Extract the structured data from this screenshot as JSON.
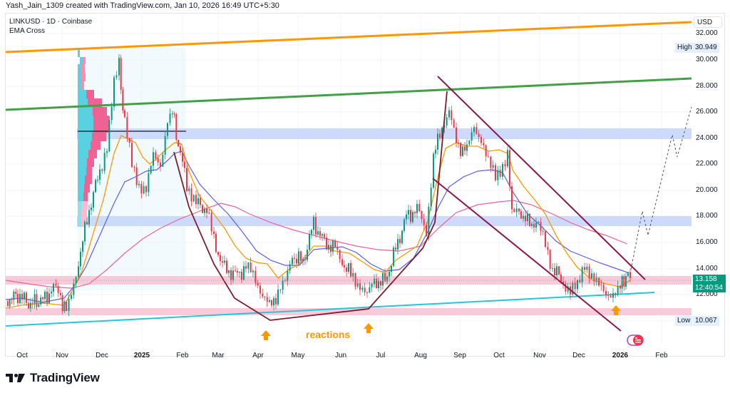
{
  "header": {
    "attribution": "Yash_Jain_1309 created with TradingView.com, Jan 10, 2026 16:49 UTC+5:30"
  },
  "legend": {
    "symbol_line": "LINKUSD · 1D · Coinbase",
    "indicator": "EMA Cross"
  },
  "price_axis": {
    "currency": "USD",
    "ticks": [
      "32.000",
      "30.000",
      "28.000",
      "26.000",
      "24.000",
      "22.000",
      "20.000",
      "18.000",
      "16.000",
      "14.000",
      "12.000"
    ],
    "high_label": "High",
    "high_value": "30.949",
    "low_label": "Low",
    "low_value": "10.067",
    "last_price": "13.158",
    "countdown": "12:40:54"
  },
  "time_axis": {
    "ticks": [
      {
        "label": "Oct",
        "bold": false
      },
      {
        "label": "Nov",
        "bold": false
      },
      {
        "label": "Dec",
        "bold": false
      },
      {
        "label": "2025",
        "bold": true
      },
      {
        "label": "Feb",
        "bold": false
      },
      {
        "label": "Mar",
        "bold": false
      },
      {
        "label": "Apr",
        "bold": false
      },
      {
        "label": "May",
        "bold": false
      },
      {
        "label": "Jun",
        "bold": false
      },
      {
        "label": "Jul",
        "bold": false
      },
      {
        "label": "Aug",
        "bold": false
      },
      {
        "label": "Sep",
        "bold": false
      },
      {
        "label": "Oct",
        "bold": false
      },
      {
        "label": "Nov",
        "bold": false
      },
      {
        "label": "Dec",
        "bold": false
      },
      {
        "label": "2026",
        "bold": true
      },
      {
        "label": "Feb",
        "bold": false
      }
    ]
  },
  "annotations": {
    "reactions_text": "reactions"
  },
  "branding": {
    "logo_text": "TradingView"
  },
  "colors": {
    "up": "#089981",
    "down": "#f23645",
    "ema_fast": "#ff9800",
    "ema_mid": "#5b5ff0",
    "ema_slow": "#f06292",
    "upper_resistance": "#ff9800",
    "mid_resistance": "#4caf50",
    "support_line": "#26c6da",
    "pattern_lines": "#8b1a3a",
    "blue_zone": "#c5d3fb",
    "pink_zone": "#f8c5d6"
  },
  "chart_data": {
    "type": "line",
    "title": "LINKUSD · 1D · Coinbase",
    "subtitle": "EMA Cross",
    "xlabel": "",
    "ylabel": "USD",
    "ylim": [
      9.5,
      33
    ],
    "grid": true,
    "x": [
      "2024-10",
      "2024-11",
      "2024-12",
      "2025-01",
      "2025-02",
      "2025-03",
      "2025-04",
      "2025-05",
      "2025-06",
      "2025-07",
      "2025-08",
      "2025-09",
      "2025-10",
      "2025-11",
      "2025-12",
      "2026-01",
      "2026-02"
    ],
    "series": [
      {
        "name": "LINKUSD close (approx, monthly)",
        "values": [
          11.2,
          11.0,
          22.5,
          24.0,
          19.5,
          14.5,
          11.5,
          15.0,
          13.0,
          15.5,
          24.5,
          22.0,
          18.0,
          13.5,
          12.2,
          13.158,
          null
        ]
      },
      {
        "name": "EMA fast",
        "values": [
          11.5,
          11.3,
          17.0,
          23.0,
          21.0,
          16.0,
          13.0,
          14.5,
          14.0,
          14.5,
          22.0,
          23.0,
          21.0,
          15.0,
          12.8,
          13.0,
          null
        ]
      },
      {
        "name": "EMA mid",
        "values": [
          11.6,
          11.4,
          14.0,
          21.0,
          21.5,
          17.5,
          14.0,
          14.8,
          14.7,
          14.0,
          19.0,
          22.5,
          21.5,
          17.0,
          14.3,
          13.6,
          null
        ]
      },
      {
        "name": "EMA slow",
        "values": [
          12.8,
          12.3,
          12.8,
          15.5,
          17.8,
          17.5,
          16.5,
          16.0,
          15.6,
          15.3,
          17.5,
          18.8,
          19.2,
          17.8,
          16.6,
          16.1,
          null
        ]
      }
    ],
    "annotations": [
      {
        "type": "trendline",
        "label": "upper resistance (orange)",
        "from": [
          "2024-10",
          30.9
        ],
        "to": [
          "2026-02",
          32.8
        ]
      },
      {
        "type": "trendline",
        "label": "mid resistance (green)",
        "from": [
          "2024-10",
          26.4
        ],
        "to": [
          "2026-02",
          28.6
        ]
      },
      {
        "type": "trendline",
        "label": "rising support (cyan)",
        "from": [
          "2024-10",
          9.9
        ],
        "to": [
          "2026-01",
          12.0
        ]
      },
      {
        "type": "zone",
        "label": "blue resistance zone",
        "range": [
          23.9,
          24.7
        ]
      },
      {
        "type": "zone",
        "label": "blue zone",
        "range": [
          17.3,
          18.0
        ]
      },
      {
        "type": "zone",
        "label": "pink zone",
        "range": [
          12.8,
          13.6
        ]
      },
      {
        "type": "zone",
        "label": "pink support zone",
        "range": [
          10.5,
          11.0
        ]
      },
      {
        "type": "horizontal",
        "label": "POC line",
        "value": 24.5
      },
      {
        "type": "channel",
        "label": "descending channel",
        "upper_from": [
          "2025-08",
          28.5
        ],
        "upper_to": [
          "2026-01",
          12.9
        ],
        "lower_from": [
          "2025-08",
          20.8
        ],
        "lower_to": [
          "2026-01",
          9.9
        ]
      },
      {
        "type": "text",
        "label": "reactions",
        "at": [
          "2025-05",
          10.0
        ]
      },
      {
        "type": "arrow",
        "label": "up arrow",
        "at": [
          "2025-04",
          10.0
        ]
      },
      {
        "type": "arrow",
        "label": "up arrow",
        "at": [
          "2025-06",
          10.1
        ]
      },
      {
        "type": "arrow",
        "label": "up arrow",
        "at": [
          "2025-12",
          10.6
        ]
      },
      {
        "type": "projection",
        "label": "dashed bullish projection",
        "points": [
          [
            13.3,
            "2026-01"
          ],
          [
            18.5,
            "2026-01"
          ],
          [
            16.0,
            "2026-01"
          ],
          [
            24.5,
            "2026-02"
          ],
          [
            23.0,
            "2026-02"
          ],
          [
            26.2,
            "2026-02"
          ]
        ]
      }
    ],
    "high": 30.949,
    "low": 10.067,
    "last": 13.158
  }
}
